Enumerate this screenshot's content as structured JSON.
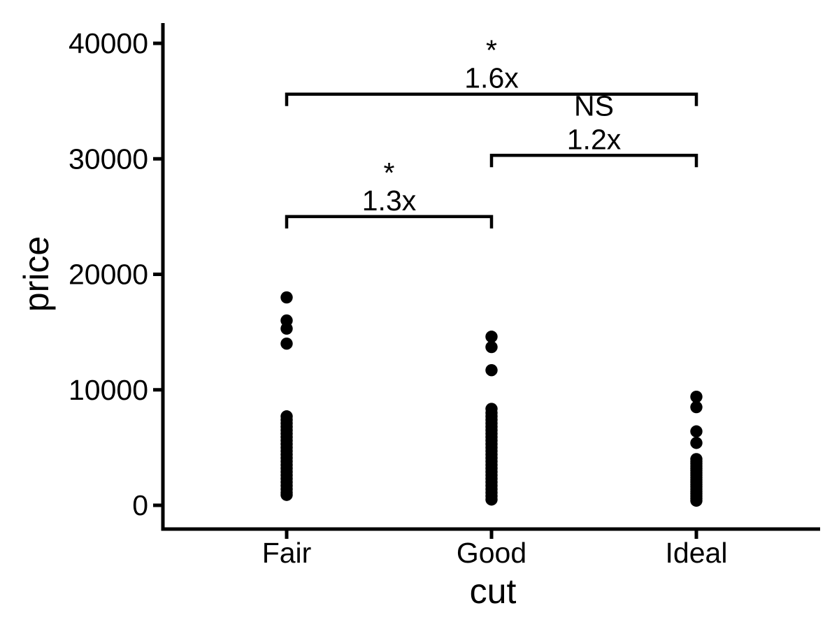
{
  "colors": {
    "foreground": "#000000",
    "background": "#ffffff"
  },
  "chart_data": {
    "type": "scatter",
    "subtype": "strip-plot",
    "title": "",
    "xlabel": "cut",
    "ylabel": "price",
    "categories": [
      "Fair",
      "Good",
      "Ideal"
    ],
    "y_ticks": [
      0,
      10000,
      20000,
      30000,
      40000
    ],
    "ylim": [
      -2000,
      41800
    ],
    "grid": false,
    "legend": false,
    "point_color": "#000000",
    "series": [
      {
        "name": "Fair",
        "values": [
          18000,
          16000,
          15300,
          14000,
          7700,
          7400,
          7100,
          6800,
          6500,
          6200,
          5900,
          5600,
          5300,
          5000,
          4700,
          4400,
          4100,
          3800,
          3500,
          3200,
          2900,
          2600,
          2300,
          2000,
          1700,
          1400,
          1100,
          900
        ]
      },
      {
        "name": "Good",
        "values": [
          14600,
          13700,
          11700,
          8350,
          8000,
          7700,
          7400,
          7100,
          6800,
          6500,
          6200,
          5900,
          5600,
          5300,
          5000,
          4700,
          4400,
          4100,
          3800,
          3500,
          3200,
          2900,
          2600,
          2300,
          2000,
          1700,
          1400,
          1100,
          800,
          500
        ]
      },
      {
        "name": "Ideal",
        "values": [
          9400,
          8500,
          6400,
          5400,
          4000,
          3800,
          3600,
          3400,
          3200,
          3000,
          2800,
          2600,
          2400,
          2200,
          2000,
          1800,
          1600,
          1400,
          1200,
          1000,
          800,
          600,
          400
        ]
      }
    ],
    "annotations": [
      {
        "group1": "Fair",
        "group2": "Ideal",
        "significance": "*",
        "ratio_label": "1.6x",
        "bracket_price": 35600
      },
      {
        "group1": "Good",
        "group2": "Ideal",
        "significance": "NS",
        "ratio_label": "1.2x",
        "bracket_price": 30300
      },
      {
        "group1": "Fair",
        "group2": "Good",
        "significance": "*",
        "ratio_label": "1.3x",
        "bracket_price": 25000
      }
    ]
  }
}
